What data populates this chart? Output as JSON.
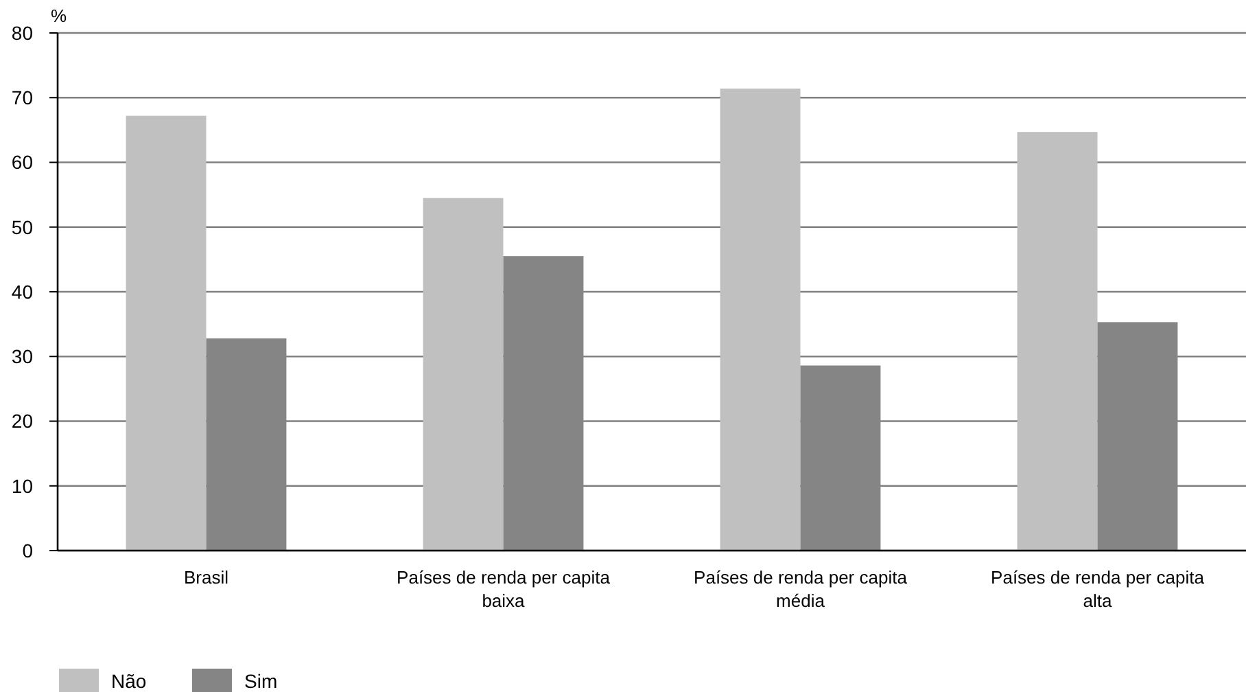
{
  "chart_data": {
    "type": "bar",
    "ylabel": "%",
    "categories": [
      "Brasil",
      "Países de renda per capita baixa",
      "Países de renda per capita média",
      "Países de renda per capita alta"
    ],
    "series": [
      {
        "name": "Não",
        "color": "#c0c0c0",
        "values": [
          67.2,
          54.5,
          71.4,
          64.7
        ]
      },
      {
        "name": "Sim",
        "color": "#858585",
        "values": [
          32.8,
          45.5,
          28.6,
          35.3
        ]
      }
    ],
    "ylim": [
      0,
      80
    ],
    "yticks": [
      0,
      10,
      20,
      30,
      40,
      50,
      60,
      70,
      80
    ],
    "grid": "y",
    "legend": "bottom left"
  }
}
